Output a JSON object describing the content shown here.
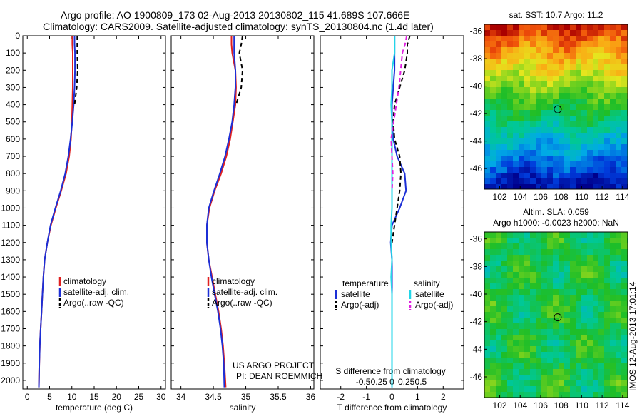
{
  "header": {
    "line1": "Argo profile: AO 1900809_173 02-Aug-2013 20130802_115 41.689S 107.666E",
    "line2": "Climatology: CARS2009. Satellite-adjusted climatology: synTS_20130804.nc (1.4d later)"
  },
  "credits": {
    "line1": "US ARGO PROJECT",
    "line2": "PI: DEAN ROEMMICH",
    "watermark": "IMOS 12-Aug-2013 17:01:14"
  },
  "colors": {
    "climatology": "#e02020",
    "satellite": "#1c2fd6",
    "argo": "#000000",
    "sal_satellite": "#22d6e8",
    "sal_argo": "#e020e0"
  },
  "chart_data": [
    {
      "type": "line",
      "panel": "temperature",
      "xlabel": "temperature (deg C)",
      "ylabel": "",
      "xlim": [
        -1,
        31
      ],
      "ylim": [
        2050,
        0
      ],
      "xticks": [
        0,
        5,
        10,
        15,
        20,
        25,
        30
      ],
      "yticks": [
        0,
        100,
        200,
        300,
        400,
        500,
        600,
        700,
        800,
        900,
        1000,
        1100,
        1200,
        1300,
        1400,
        1500,
        1600,
        1700,
        1800,
        1900,
        2000
      ],
      "legend_position": "lower-center",
      "series": [
        {
          "name": "climatology",
          "color_key": "climatology",
          "dash": "solid",
          "x": [
            10.1,
            10.1,
            10.2,
            10.2,
            10.2,
            10.1,
            10.0,
            9.8,
            9.4,
            8.7,
            7.6,
            6.4,
            5.3,
            4.5,
            3.9,
            3.6,
            3.4,
            3.2,
            3.0,
            2.8,
            2.7,
            2.6
          ],
          "y": [
            0,
            50,
            100,
            200,
            300,
            400,
            500,
            600,
            700,
            800,
            900,
            1000,
            1100,
            1200,
            1300,
            1400,
            1500,
            1600,
            1700,
            1800,
            1900,
            2040
          ]
        },
        {
          "name": "satellite-adj. clim.",
          "color_key": "satellite",
          "dash": "solid",
          "x": [
            10.6,
            10.6,
            10.7,
            10.7,
            10.6,
            10.4,
            10.1,
            9.7,
            9.2,
            8.5,
            7.5,
            6.3,
            5.2,
            4.5,
            3.9,
            3.6,
            3.4,
            3.2,
            3.0,
            2.8,
            2.7,
            2.6
          ],
          "y": [
            0,
            50,
            100,
            200,
            300,
            400,
            500,
            600,
            700,
            800,
            900,
            1000,
            1100,
            1200,
            1300,
            1400,
            1500,
            1600,
            1700,
            1800,
            1900,
            2040
          ]
        },
        {
          "name": "Argo(..raw -QC)",
          "color_key": "argo",
          "dash": "dashed",
          "x": [
            11.2,
            11.2,
            11.2,
            11.3,
            11.1,
            10.6
          ],
          "y": [
            0,
            50,
            100,
            200,
            300,
            400
          ]
        }
      ]
    },
    {
      "type": "line",
      "panel": "salinity",
      "xlabel": "salinity",
      "ylabel": "",
      "xlim": [
        33.85,
        36.05
      ],
      "ylim": [
        2050,
        0
      ],
      "xticks": [
        34,
        34.5,
        35,
        35.5,
        36
      ],
      "legend_position": "lower-center",
      "series": [
        {
          "name": "climatology",
          "color_key": "climatology",
          "dash": "solid",
          "x": [
            34.78,
            34.78,
            34.79,
            34.84,
            34.85,
            34.84,
            34.8,
            34.76,
            34.7,
            34.62,
            34.52,
            34.44,
            34.4,
            34.4,
            34.43,
            34.48,
            34.53,
            34.58,
            34.62,
            34.65,
            34.67,
            34.69
          ],
          "y": [
            0,
            50,
            100,
            200,
            300,
            400,
            500,
            600,
            700,
            800,
            900,
            1000,
            1100,
            1200,
            1300,
            1400,
            1500,
            1600,
            1700,
            1800,
            1900,
            2040
          ]
        },
        {
          "name": "satellite-adj. clim.",
          "color_key": "satellite",
          "dash": "solid",
          "x": [
            34.82,
            34.82,
            34.82,
            34.84,
            34.84,
            34.82,
            34.79,
            34.74,
            34.68,
            34.6,
            34.51,
            34.43,
            34.4,
            34.4,
            34.43,
            34.47,
            34.52,
            34.57,
            34.61,
            34.64,
            34.66,
            34.67
          ],
          "y": [
            0,
            50,
            100,
            200,
            300,
            400,
            500,
            600,
            700,
            800,
            900,
            1000,
            1100,
            1200,
            1300,
            1400,
            1500,
            1600,
            1700,
            1800,
            1900,
            2040
          ]
        },
        {
          "name": "Argo(..raw -QC)",
          "color_key": "argo",
          "dash": "dashed",
          "x": [
            34.95,
            34.93,
            34.9,
            34.95,
            34.93,
            34.85
          ],
          "y": [
            0,
            50,
            100,
            200,
            300,
            400
          ]
        }
      ]
    },
    {
      "type": "line",
      "panel": "difference",
      "xlabel": "T difference from climatology",
      "top_label": "S difference from climatology",
      "xlim": [
        -2.8,
        2.8
      ],
      "ylim": [
        2050,
        0
      ],
      "xticks": [
        -2,
        -1,
        0,
        1,
        2
      ],
      "top_ticks": [
        -0.5,
        -0.25,
        0,
        0.25,
        0.5
      ],
      "legend_position": "lower-center",
      "legend_headers": [
        "temperature",
        "salinity"
      ],
      "series": [
        {
          "name": "satellite",
          "group": "temperature",
          "color_key": "satellite",
          "dash": "solid",
          "x": [
            0.1,
            0.1,
            0.1,
            0.1,
            0.05,
            0.0,
            0.0,
            0.05,
            0.2,
            0.5,
            0.55,
            0.3,
            0.0,
            -0.05,
            0.0,
            0.0,
            0.0,
            0.0,
            0.0,
            0.0,
            0.0,
            0.0
          ],
          "y": [
            0,
            50,
            100,
            200,
            300,
            400,
            500,
            600,
            700,
            800,
            900,
            1000,
            1100,
            1200,
            1300,
            1400,
            1500,
            1600,
            1700,
            1800,
            1900,
            2040
          ]
        },
        {
          "name": "Argo(-adj)",
          "group": "temperature",
          "color_key": "argo",
          "dash": "dashed",
          "x": [
            0.7,
            0.6,
            0.6,
            0.5,
            0.3,
            0.1,
            0.05,
            0.1,
            0.3,
            0.35,
            0.3,
            0.2,
            0.1,
            0.0
          ],
          "y": [
            0,
            50,
            100,
            200,
            300,
            400,
            500,
            600,
            700,
            800,
            900,
            1000,
            1100,
            1200
          ]
        },
        {
          "name": "satellite",
          "group": "salinity",
          "color_key": "sal_satellite",
          "dash": "solid",
          "x": [
            0.03,
            0.03,
            0.03,
            0.0,
            0.0,
            -0.01,
            0.0,
            0.0,
            0.0,
            0.0,
            0.0,
            0.0,
            -0.01,
            -0.01,
            0.0,
            -0.01,
            0.0,
            0.0,
            0.0,
            0.0,
            0.0,
            0.0
          ],
          "y": [
            0,
            50,
            100,
            200,
            300,
            400,
            500,
            600,
            700,
            800,
            900,
            1000,
            1100,
            1200,
            1300,
            1400,
            1500,
            1600,
            1700,
            1800,
            1900,
            2040
          ]
        },
        {
          "name": "Argo(-adj)",
          "group": "salinity",
          "color_key": "sal_argo",
          "dash": "dashed",
          "x": [
            0.17,
            0.15,
            0.12,
            0.1,
            0.08,
            0.05,
            0.02,
            -0.01,
            0.0,
            0.01,
            0.0
          ],
          "y": [
            0,
            50,
            100,
            200,
            300,
            400,
            500,
            600,
            700,
            800,
            900
          ]
        }
      ]
    },
    {
      "type": "heatmap",
      "panel": "sst-map",
      "title": "sat. SST: 10.7 Argo: 11.2",
      "xlim": [
        100.5,
        114.5
      ],
      "ylim": [
        -47.5,
        -35.5
      ],
      "xticks": [
        102,
        104,
        106,
        108,
        110,
        112,
        114
      ],
      "yticks": [
        -36,
        -38,
        -40,
        -42,
        -44,
        -46
      ],
      "marker": {
        "lon": 107.666,
        "lat": -41.689
      }
    },
    {
      "type": "heatmap",
      "panel": "sla-map",
      "title": "Altim. SLA: 0.059",
      "subtitle": "Argo h1000: -0.0023 h2000: NaN",
      "xlim": [
        100.5,
        114.5
      ],
      "ylim": [
        -47.5,
        -35.5
      ],
      "xticks": [
        102,
        104,
        106,
        108,
        110,
        112,
        114
      ],
      "yticks": [
        -36,
        -38,
        -40,
        -42,
        -44,
        -46
      ],
      "marker": {
        "lon": 107.666,
        "lat": -41.689
      }
    }
  ]
}
